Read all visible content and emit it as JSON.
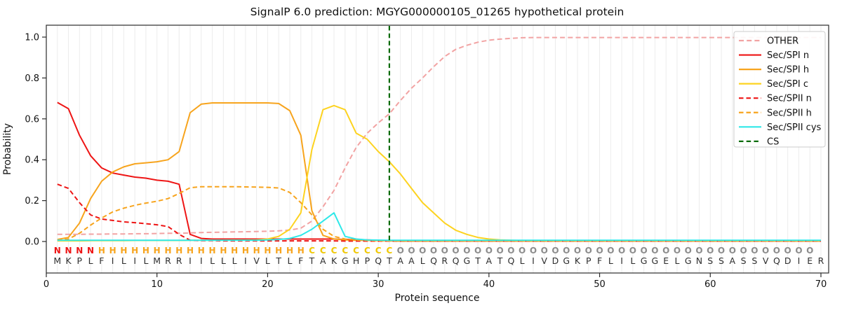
{
  "title": "SignalP 6.0 prediction: MGYG000000105_01265 hypothetical protein",
  "axes": {
    "xlabel": "Protein sequence",
    "ylabel": "Probability",
    "x_ticks": [
      0,
      10,
      20,
      30,
      40,
      50,
      60,
      70
    ],
    "y_ticks": [
      "0.0",
      "0.2",
      "0.4",
      "0.6",
      "0.8",
      "1.0"
    ]
  },
  "colors": {
    "other": "#f2a3a3",
    "red": "#ee1515",
    "orange": "#f7a41d",
    "yellow": "#fdd320",
    "cyan": "#2fe8e8",
    "cs_green": "#0a6b0a",
    "grid": "#ececec",
    "frame": "#2b2b2b",
    "text": "#111111",
    "residue_letter": "#2e2e2e",
    "region_N": "#ee1515",
    "region_H": "#f7a41d",
    "region_C": "#f0c800",
    "region_O": "#8c8c8c"
  },
  "chart_data": {
    "type": "line",
    "x_start": 1,
    "xlim": [
      0,
      70.7
    ],
    "ylim": [
      0,
      1.06
    ],
    "grid": "vertical-per-residue",
    "legend_position": "upper right",
    "sequence": "MKPLFILILMRRIILLLIVLTLFTAKGHPQTAALQRQGTATQLIVDGKPFLILGGELGNSSASSVQDIER",
    "region_labels": "NNNNHHHHHHHHHHHHHHHHHHHCCCCCCCCOOOOOOOOOOOOOOOOOOOOOOOOOOOOOOOOOOOOOO",
    "cs_position": 31,
    "series": [
      {
        "name": "OTHER",
        "color_key": "other",
        "style": "dashed",
        "values": [
          0.035,
          0.035,
          0.035,
          0.036,
          0.036,
          0.037,
          0.037,
          0.038,
          0.038,
          0.039,
          0.04,
          0.04,
          0.042,
          0.044,
          0.045,
          0.046,
          0.047,
          0.048,
          0.049,
          0.05,
          0.052,
          0.056,
          0.065,
          0.1,
          0.17,
          0.25,
          0.36,
          0.46,
          0.53,
          0.58,
          0.625,
          0.69,
          0.75,
          0.8,
          0.855,
          0.905,
          0.94,
          0.96,
          0.975,
          0.985,
          0.99,
          0.994,
          0.997,
          0.998,
          0.998,
          0.998,
          0.998,
          0.998,
          0.998,
          0.998,
          0.998,
          0.998,
          0.998,
          0.998,
          0.998,
          0.998,
          0.998,
          0.998,
          0.998,
          0.998,
          0.998,
          0.998,
          0.998,
          0.998,
          0.998,
          0.998,
          0.998,
          0.998,
          0.998,
          0.998
        ]
      },
      {
        "name": "Sec/SPI n",
        "color_key": "red",
        "style": "solid",
        "values": [
          0.68,
          0.65,
          0.52,
          0.42,
          0.36,
          0.335,
          0.325,
          0.315,
          0.31,
          0.3,
          0.295,
          0.28,
          0.035,
          0.015,
          0.012,
          0.012,
          0.012,
          0.012,
          0.012,
          0.012,
          0.012,
          0.012,
          0.012,
          0.012,
          0.012,
          0.012,
          0.01,
          0.01,
          0.008,
          0.006,
          0.004,
          0.002,
          0.002,
          0.002,
          0.002,
          0.002,
          0.002,
          0.002,
          0.002,
          0.002,
          0.002,
          0.002,
          0.002,
          0.002,
          0.002,
          0.002,
          0.002,
          0.002,
          0.002,
          0.002,
          0.002,
          0.002,
          0.002,
          0.002,
          0.002,
          0.002,
          0.002,
          0.002,
          0.002,
          0.002,
          0.002,
          0.002,
          0.002,
          0.002,
          0.002,
          0.002,
          0.002,
          0.002,
          0.002,
          0.002
        ]
      },
      {
        "name": "Sec/SPI h",
        "color_key": "orange",
        "style": "solid",
        "values": [
          0.01,
          0.02,
          0.09,
          0.21,
          0.295,
          0.34,
          0.365,
          0.38,
          0.385,
          0.39,
          0.4,
          0.44,
          0.63,
          0.672,
          0.678,
          0.678,
          0.678,
          0.678,
          0.678,
          0.678,
          0.675,
          0.64,
          0.52,
          0.15,
          0.03,
          0.012,
          0.008,
          0.006,
          0.005,
          0.004,
          0.003,
          0.002,
          0.002,
          0.002,
          0.002,
          0.002,
          0.002,
          0.002,
          0.002,
          0.002,
          0.002,
          0.002,
          0.002,
          0.002,
          0.002,
          0.002,
          0.002,
          0.002,
          0.002,
          0.002,
          0.002,
          0.002,
          0.002,
          0.002,
          0.002,
          0.002,
          0.002,
          0.002,
          0.002,
          0.002,
          0.002,
          0.002,
          0.002,
          0.002,
          0.002,
          0.002,
          0.002,
          0.002,
          0.002,
          0.002
        ]
      },
      {
        "name": "Sec/SPI c",
        "color_key": "yellow",
        "style": "solid",
        "values": [
          0.003,
          0.003,
          0.003,
          0.004,
          0.004,
          0.004,
          0.004,
          0.005,
          0.005,
          0.005,
          0.005,
          0.005,
          0.006,
          0.006,
          0.006,
          0.006,
          0.007,
          0.007,
          0.008,
          0.012,
          0.025,
          0.06,
          0.14,
          0.45,
          0.645,
          0.665,
          0.645,
          0.53,
          0.5,
          0.44,
          0.39,
          0.33,
          0.26,
          0.19,
          0.14,
          0.09,
          0.055,
          0.035,
          0.02,
          0.012,
          0.008,
          0.006,
          0.004,
          0.004,
          0.004,
          0.004,
          0.004,
          0.004,
          0.004,
          0.004,
          0.004,
          0.004,
          0.004,
          0.004,
          0.004,
          0.004,
          0.004,
          0.004,
          0.004,
          0.004,
          0.004,
          0.004,
          0.004,
          0.004,
          0.004,
          0.004,
          0.004,
          0.004,
          0.004,
          0.004
        ]
      },
      {
        "name": "Sec/SPII n",
        "color_key": "red",
        "style": "dashed",
        "values": [
          0.28,
          0.26,
          0.19,
          0.13,
          0.11,
          0.103,
          0.096,
          0.092,
          0.087,
          0.082,
          0.073,
          0.035,
          0.006,
          0.004,
          0.004,
          0.003,
          0.003,
          0.003,
          0.003,
          0.003,
          0.003,
          0.003,
          0.003,
          0.003,
          0.003,
          0.003,
          0.002,
          0.002,
          0.002,
          0.002,
          0.002,
          0.002,
          0.002,
          0.002,
          0.002,
          0.002,
          0.002,
          0.002,
          0.002,
          0.002,
          0.002,
          0.002,
          0.002,
          0.002,
          0.002,
          0.002,
          0.002,
          0.002,
          0.002,
          0.002,
          0.002,
          0.002,
          0.002,
          0.002,
          0.002,
          0.002,
          0.002,
          0.002,
          0.002,
          0.002,
          0.002,
          0.002,
          0.002,
          0.002,
          0.002,
          0.002,
          0.002,
          0.002,
          0.002,
          0.002
        ]
      },
      {
        "name": "Sec/SPII h",
        "color_key": "orange",
        "style": "dashed",
        "values": [
          0.005,
          0.012,
          0.04,
          0.08,
          0.115,
          0.145,
          0.163,
          0.177,
          0.188,
          0.197,
          0.21,
          0.235,
          0.263,
          0.268,
          0.268,
          0.268,
          0.268,
          0.267,
          0.266,
          0.265,
          0.262,
          0.24,
          0.19,
          0.13,
          0.06,
          0.025,
          0.012,
          0.007,
          0.005,
          0.004,
          0.003,
          0.003,
          0.003,
          0.003,
          0.003,
          0.003,
          0.003,
          0.003,
          0.003,
          0.003,
          0.003,
          0.003,
          0.003,
          0.003,
          0.003,
          0.003,
          0.003,
          0.003,
          0.003,
          0.003,
          0.003,
          0.003,
          0.003,
          0.003,
          0.003,
          0.003,
          0.003,
          0.003,
          0.003,
          0.003,
          0.003,
          0.003,
          0.003,
          0.003,
          0.003,
          0.003,
          0.003,
          0.003,
          0.003,
          0.003
        ]
      },
      {
        "name": "Sec/SPII cys",
        "color_key": "cyan",
        "style": "solid",
        "values": [
          0.006,
          0.006,
          0.006,
          0.006,
          0.006,
          0.006,
          0.006,
          0.006,
          0.006,
          0.006,
          0.006,
          0.006,
          0.006,
          0.006,
          0.006,
          0.006,
          0.006,
          0.006,
          0.006,
          0.008,
          0.01,
          0.015,
          0.03,
          0.06,
          0.1,
          0.14,
          0.025,
          0.012,
          0.008,
          0.007,
          0.006,
          0.006,
          0.006,
          0.006,
          0.006,
          0.006,
          0.006,
          0.006,
          0.006,
          0.006,
          0.006,
          0.006,
          0.006,
          0.006,
          0.006,
          0.006,
          0.006,
          0.006,
          0.006,
          0.006,
          0.006,
          0.006,
          0.006,
          0.006,
          0.006,
          0.006,
          0.006,
          0.006,
          0.006,
          0.006,
          0.006,
          0.006,
          0.006,
          0.006,
          0.006,
          0.006,
          0.006,
          0.006,
          0.006,
          0.006
        ]
      }
    ],
    "legend": [
      "OTHER",
      "Sec/SPI n",
      "Sec/SPI h",
      "Sec/SPI c",
      "Sec/SPII n",
      "Sec/SPII h",
      "Sec/SPII cys",
      "CS"
    ]
  }
}
